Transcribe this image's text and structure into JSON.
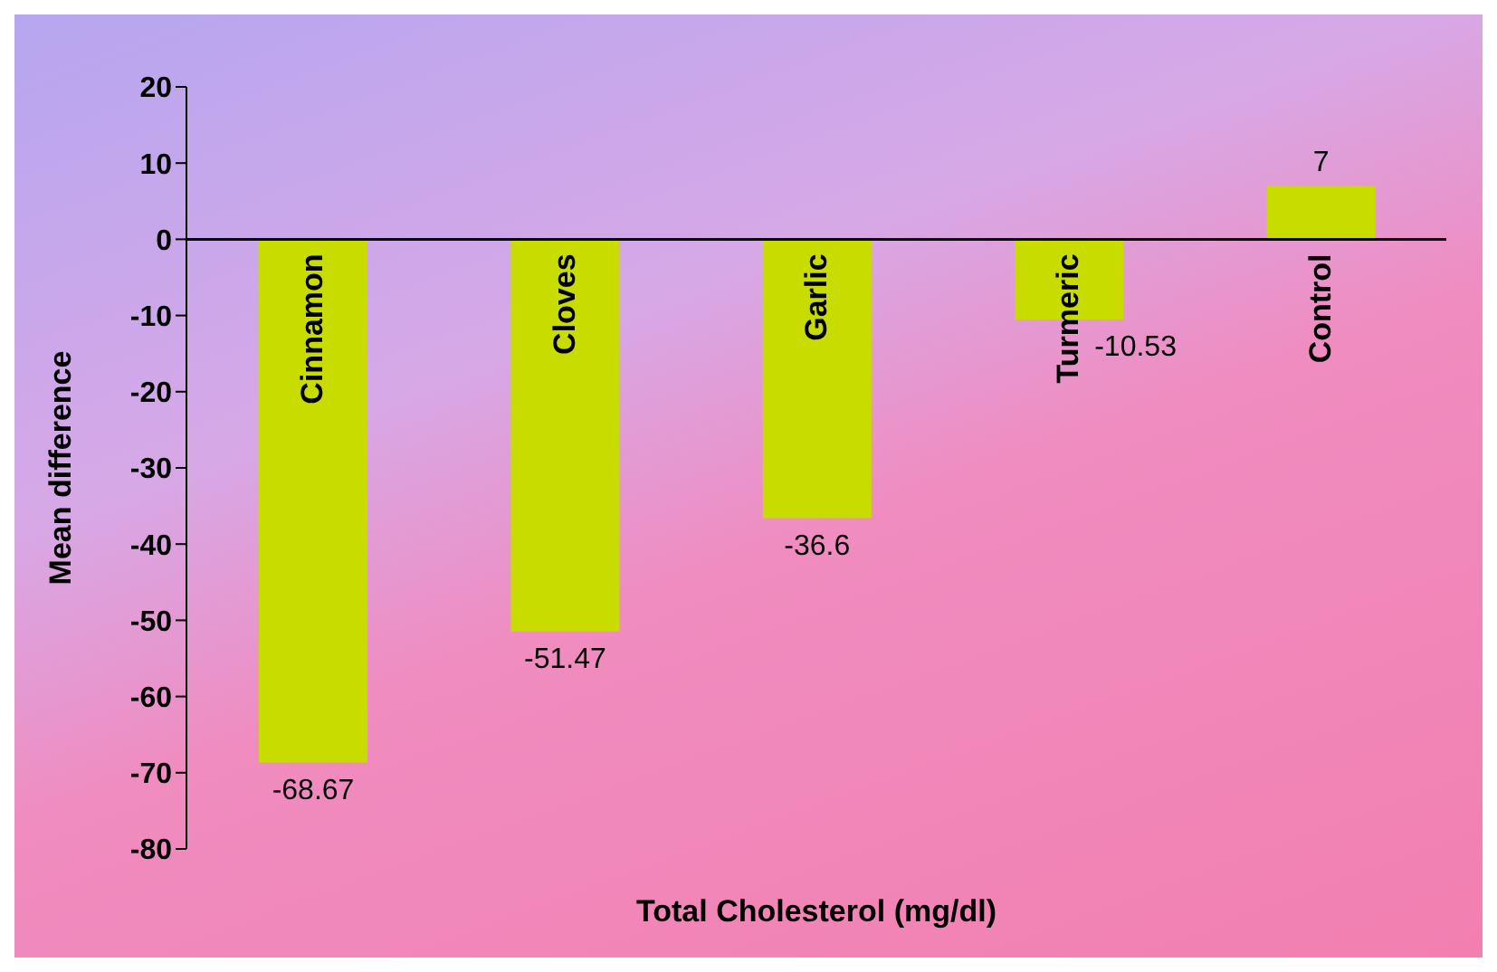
{
  "chart_data": {
    "type": "bar",
    "xlabel": "Total Cholesterol (mg/dl)",
    "ylabel": "Mean difference",
    "categories": [
      "Cinnamon",
      "Cloves",
      "Garlic",
      "Turmeric",
      "Control"
    ],
    "values": [
      -68.67,
      -51.47,
      -36.6,
      -10.53,
      7
    ],
    "color": "#c8dc00",
    "ylim": [
      -80,
      20
    ],
    "yticks": [
      -80,
      -70,
      -60,
      -50,
      -40,
      -30,
      -20,
      -10,
      0,
      10,
      20
    ],
    "data_labels": true,
    "grid": false,
    "legend": false
  }
}
